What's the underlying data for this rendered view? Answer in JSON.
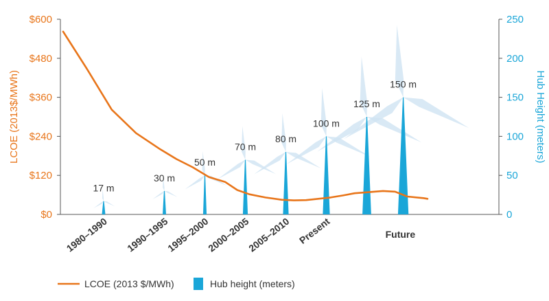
{
  "chart_data": {
    "type": "line+bar",
    "left_axis": {
      "title": "LCOE (2013$/MWh)",
      "ylim": [
        0,
        600
      ],
      "ticks": [
        {
          "value": 0,
          "label": "$0"
        },
        {
          "value": 120,
          "label": "$120"
        },
        {
          "value": 240,
          "label": "$240"
        },
        {
          "value": 360,
          "label": "$360"
        },
        {
          "value": 480,
          "label": "$480"
        },
        {
          "value": 600,
          "label": "$600"
        }
      ]
    },
    "right_axis": {
      "title": "Hub Height (meters)",
      "ylim": [
        0,
        250
      ],
      "ticks": [
        {
          "value": 0,
          "label": "0"
        },
        {
          "value": 50,
          "label": "50"
        },
        {
          "value": 100,
          "label": "100"
        },
        {
          "value": 150,
          "label": "150"
        },
        {
          "value": 200,
          "label": "200"
        },
        {
          "value": 250,
          "label": "250"
        }
      ]
    },
    "categories": [
      "1980–1990",
      "1990–1995",
      "1995–2000",
      "2000–2005",
      "2005–2010",
      "Present",
      "Future"
    ],
    "hub_heights": [
      {
        "t": 1.0,
        "value": 17,
        "label": "17 m"
      },
      {
        "t": 2.5,
        "value": 30,
        "label": "30 m"
      },
      {
        "t": 3.5,
        "value": 50,
        "label": "50 m"
      },
      {
        "t": 4.5,
        "value": 70,
        "label": "70 m"
      },
      {
        "t": 5.5,
        "value": 80,
        "label": "80 m"
      },
      {
        "t": 6.5,
        "value": 100,
        "label": "100 m"
      },
      {
        "t": 7.5,
        "value": 125,
        "label": "125 m"
      },
      {
        "t": 8.4,
        "value": 150,
        "label": "150 m"
      }
    ],
    "lcoe_series": {
      "name": "LCOE (2013 $/MWh)",
      "points": [
        [
          0.0,
          562
        ],
        [
          0.6,
          445
        ],
        [
          1.2,
          322
        ],
        [
          1.8,
          250
        ],
        [
          2.4,
          200
        ],
        [
          2.8,
          170
        ],
        [
          3.2,
          145
        ],
        [
          3.6,
          115
        ],
        [
          4.0,
          100
        ],
        [
          4.3,
          75
        ],
        [
          4.6,
          62
        ],
        [
          5.0,
          52
        ],
        [
          5.4,
          45
        ],
        [
          5.7,
          43
        ],
        [
          6.0,
          44
        ],
        [
          6.3,
          48
        ],
        [
          6.6,
          52
        ],
        [
          6.9,
          58
        ],
        [
          7.2,
          65
        ],
        [
          7.5,
          68
        ],
        [
          7.9,
          72
        ],
        [
          8.2,
          70
        ],
        [
          8.5,
          55
        ],
        [
          8.9,
          50
        ],
        [
          9.0,
          48
        ]
      ]
    },
    "legend": {
      "line_label": "LCOE (2013 $/MWh)",
      "bar_label": "Hub height (meters)",
      "position": "bottom-left"
    },
    "colors": {
      "lcoe": "#e8751a",
      "hub": "#1aa6d8",
      "turbine": "#cfe4f2",
      "axis": "#555555"
    }
  }
}
